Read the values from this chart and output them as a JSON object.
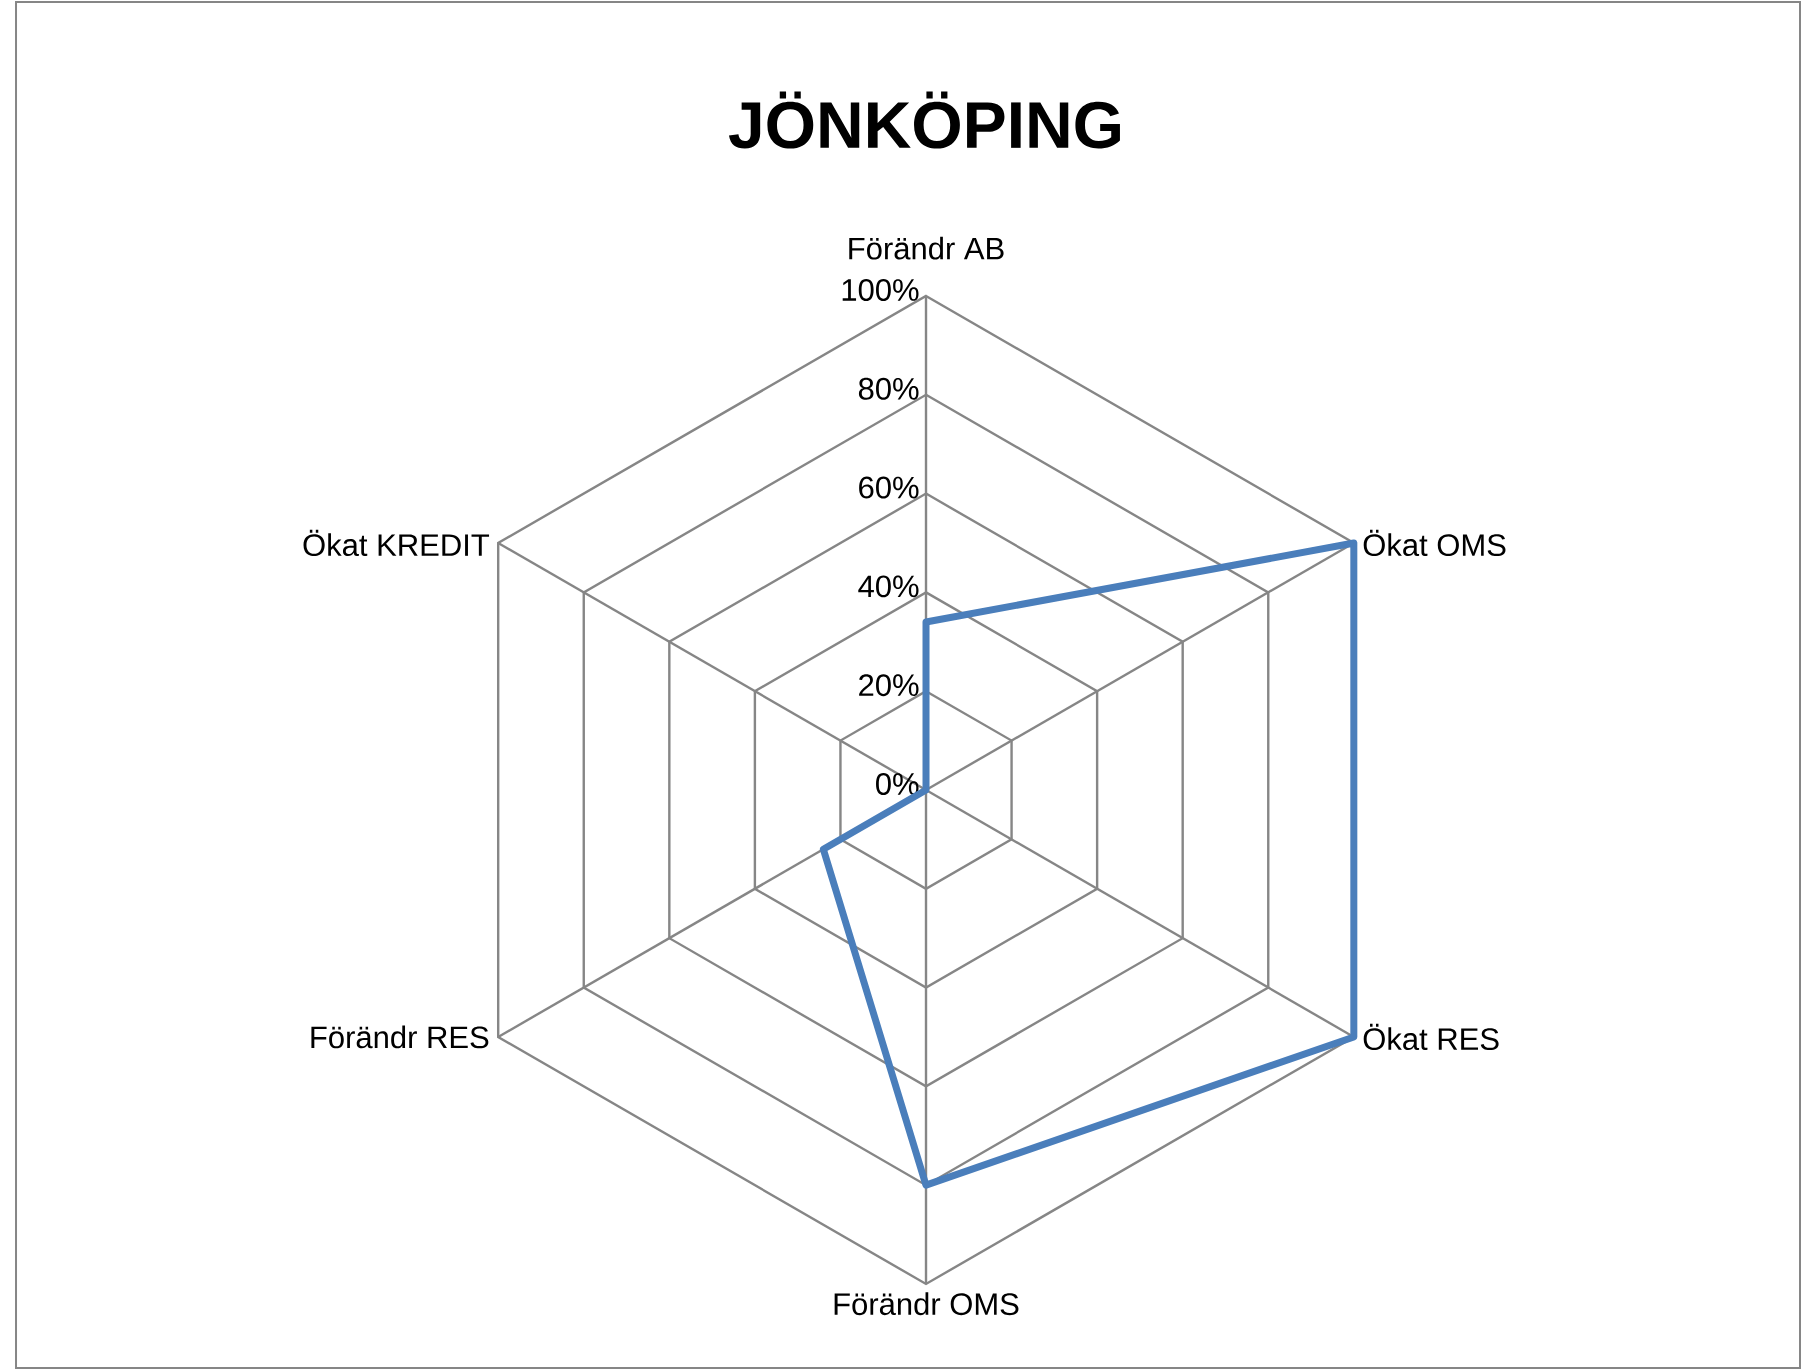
{
  "chart_data": {
    "type": "radar",
    "title": "JÖNKÖPING",
    "categories": [
      "Förändr AB",
      "Ökat OMS",
      "Ökat RES",
      "Förändr OMS",
      "Förändr RES",
      "Ökat KREDIT"
    ],
    "series": [
      {
        "color": "#4a7ebb",
        "values": [
          34,
          100,
          100,
          80,
          24,
          0
        ]
      }
    ],
    "ylim": [
      0,
      100
    ],
    "yticks": [
      {
        "value": 0,
        "label": "0%"
      },
      {
        "value": 20,
        "label": "20%"
      },
      {
        "value": 40,
        "label": "40%"
      },
      {
        "value": 60,
        "label": "60%"
      },
      {
        "value": 80,
        "label": "80%"
      },
      {
        "value": 100,
        "label": "100%"
      }
    ],
    "grid": true
  }
}
